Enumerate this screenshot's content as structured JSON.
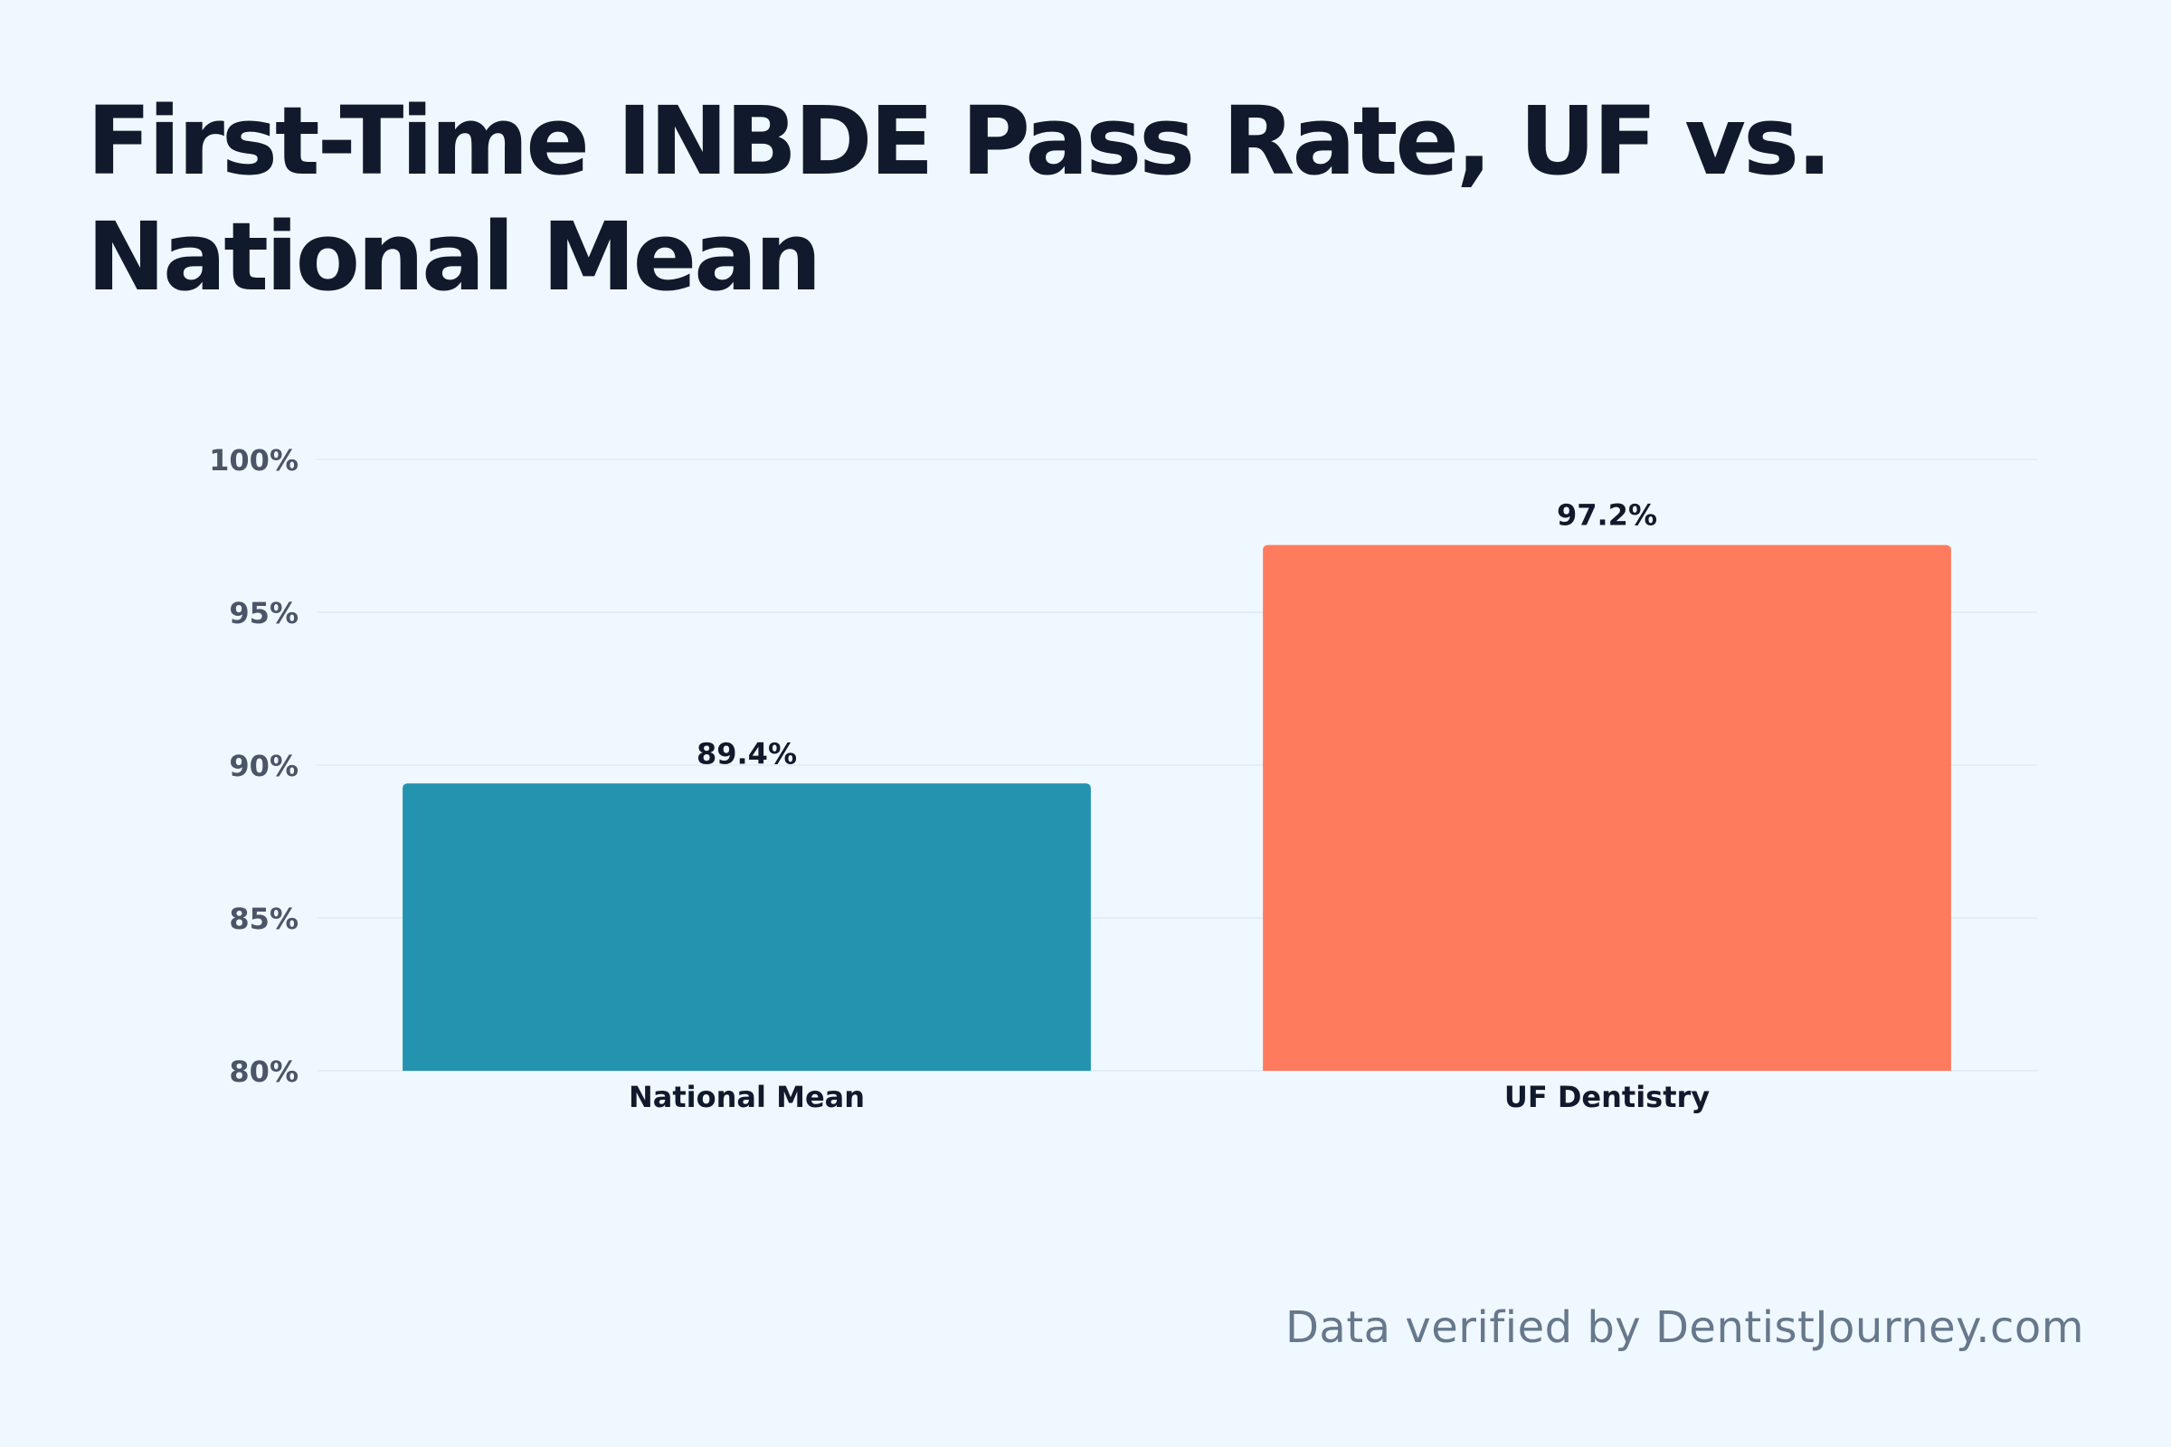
{
  "title": "First-Time INBDE Pass Rate, UF vs. National Mean",
  "footer": "Data verified by DentistJourney.com",
  "colors": {
    "background": "#f0f8ff",
    "title": "#111a2c",
    "axis_text": "#4a5568",
    "category_text": "#111a2c",
    "value_text": "#111a2c",
    "grid": "#e3eef8",
    "footer": "#66788c"
  },
  "chart_data": {
    "type": "bar",
    "title": "First-Time INBDE Pass Rate, UF vs. National Mean",
    "xlabel": "",
    "ylabel": "",
    "categories": [
      "National Mean",
      "UF Dentistry"
    ],
    "values": [
      89.4,
      97.2
    ],
    "value_labels": [
      "89.4%",
      "97.2%"
    ],
    "bar_colors": [
      "#2393b0",
      "#ff7b5e"
    ],
    "ylim": [
      80,
      100
    ],
    "yticks": [
      80,
      85,
      90,
      95,
      100
    ],
    "ytick_labels": [
      "80%",
      "85%",
      "90%",
      "95%",
      "100%"
    ],
    "grid": true,
    "legend": "none"
  }
}
